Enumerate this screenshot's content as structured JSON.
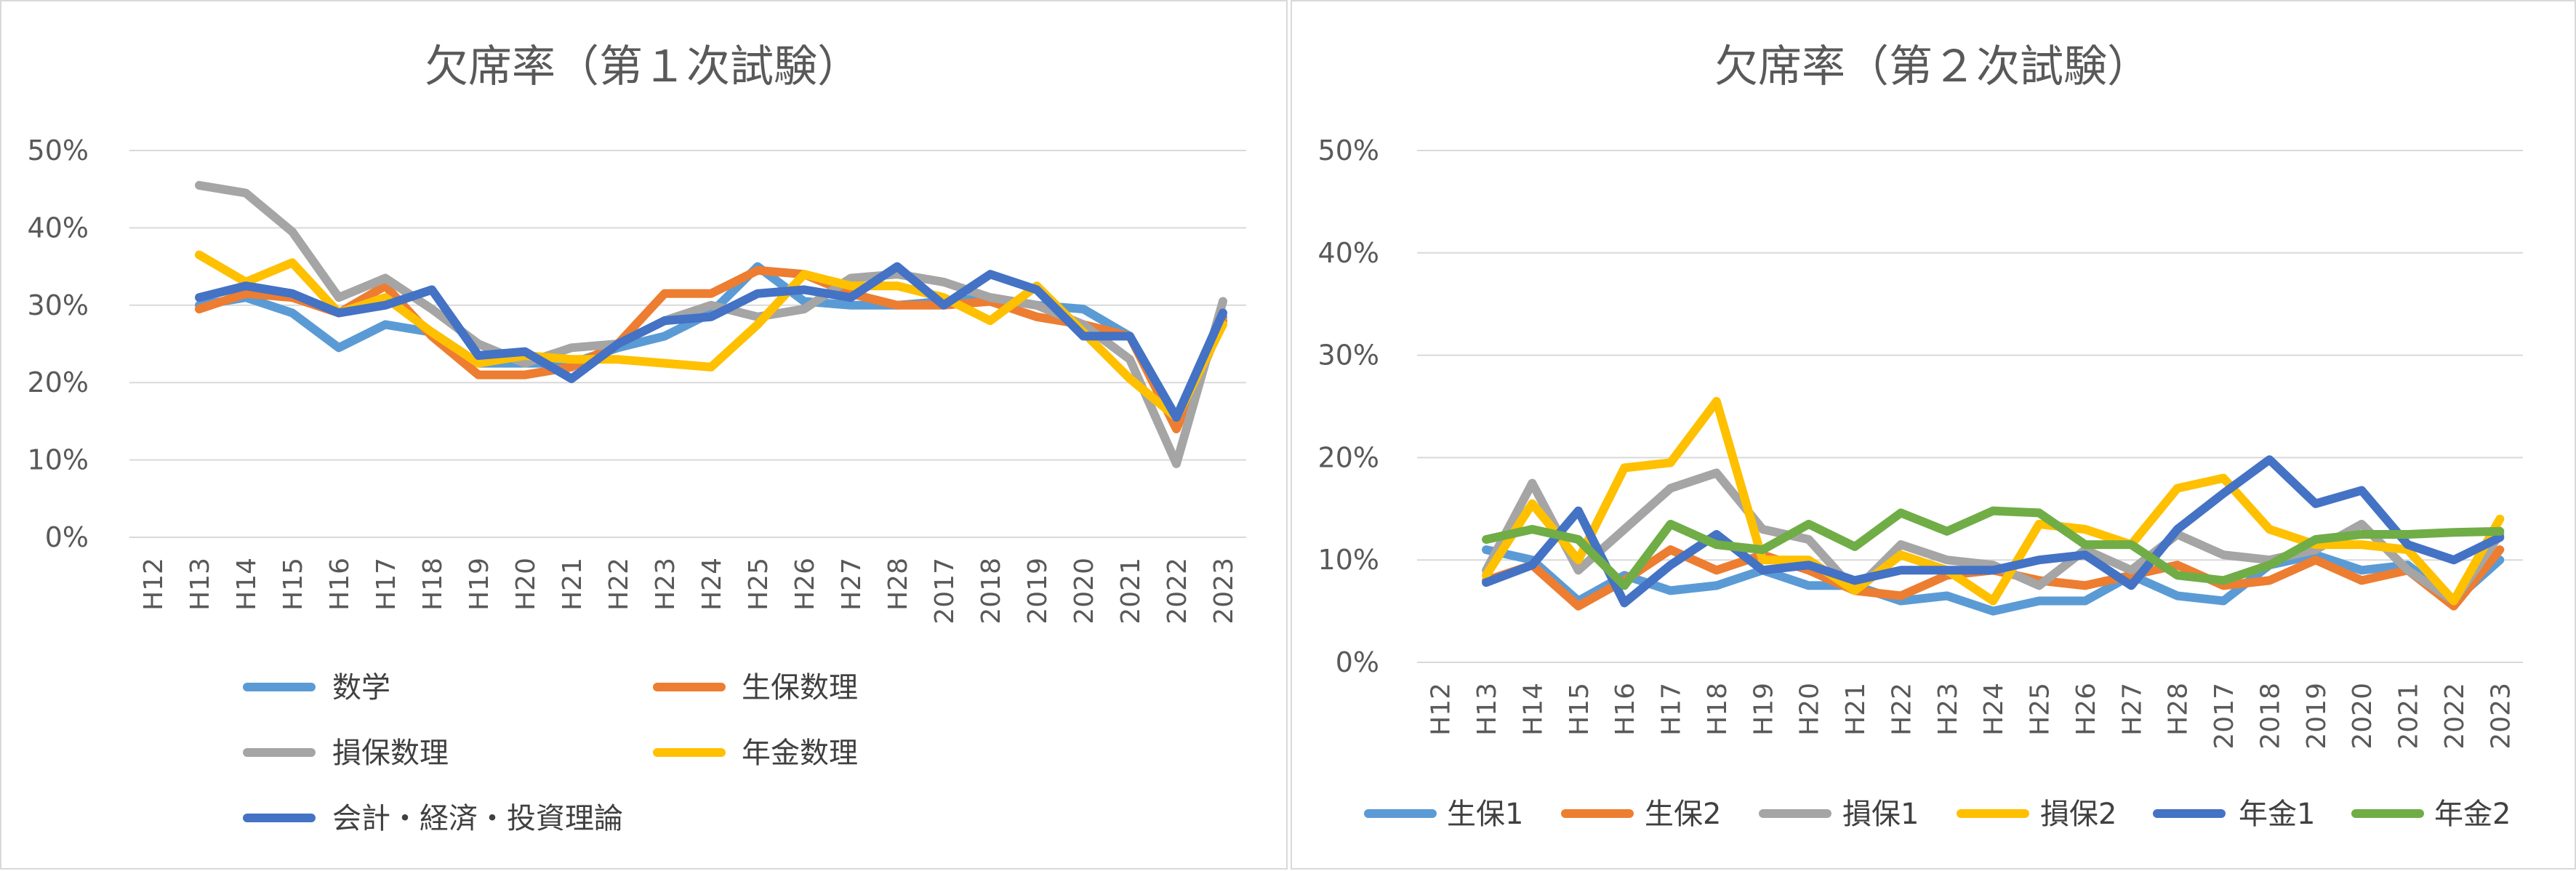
{
  "chart_data": [
    {
      "type": "line",
      "title": "欠席率（第１次試験）",
      "categories": [
        "H12",
        "H13",
        "H14",
        "H15",
        "H16",
        "H17",
        "H18",
        "H19",
        "H20",
        "H21",
        "H22",
        "H23",
        "H24",
        "H25",
        "H26",
        "H27",
        "H28",
        "2017",
        "2018",
        "2019",
        "2020",
        "2021",
        "2022",
        "2023"
      ],
      "ylim": [
        0,
        0.5
      ],
      "yticks": [
        0,
        0.1,
        0.2,
        0.3,
        0.4,
        0.5
      ],
      "ytick_labels": [
        "0%",
        "10%",
        "20%",
        "30%",
        "40%",
        "50%"
      ],
      "grid": true,
      "legend_position": "bottom",
      "series": [
        {
          "name": "数学",
          "color": "#5B9BD5",
          "values": [
            null,
            0.3,
            0.31,
            0.29,
            0.245,
            0.275,
            0.265,
            0.225,
            0.225,
            0.225,
            0.245,
            0.26,
            0.29,
            0.35,
            0.305,
            0.3,
            0.3,
            0.305,
            0.31,
            0.3,
            0.295,
            0.26,
            0.145,
            0.285
          ]
        },
        {
          "name": "生保数理",
          "color": "#ED7D31",
          "values": [
            null,
            0.295,
            0.315,
            0.31,
            0.29,
            0.325,
            0.26,
            0.21,
            0.21,
            0.22,
            0.25,
            0.315,
            0.315,
            0.345,
            0.34,
            0.315,
            0.3,
            0.3,
            0.305,
            0.285,
            0.275,
            0.26,
            0.14,
            0.28
          ]
        },
        {
          "name": "損保数理",
          "color": "#A5A5A5",
          "values": [
            null,
            0.455,
            0.445,
            0.395,
            0.31,
            0.335,
            0.295,
            0.25,
            0.225,
            0.245,
            0.25,
            0.28,
            0.3,
            0.285,
            0.295,
            0.335,
            0.34,
            0.33,
            0.31,
            0.3,
            0.275,
            0.23,
            0.095,
            0.305
          ]
        },
        {
          "name": "年金数理",
          "color": "#FFC000",
          "values": [
            null,
            0.365,
            0.33,
            0.355,
            0.29,
            0.31,
            0.265,
            0.225,
            0.235,
            0.23,
            0.23,
            0.225,
            0.22,
            0.275,
            0.34,
            0.325,
            0.325,
            0.31,
            0.28,
            0.325,
            0.265,
            0.205,
            0.155,
            0.275
          ]
        },
        {
          "name": "会計・経済・投資理論",
          "color": "#4472C4",
          "values": [
            null,
            0.31,
            0.325,
            0.315,
            0.29,
            0.3,
            0.32,
            0.235,
            0.24,
            0.205,
            0.25,
            0.28,
            0.285,
            0.315,
            0.32,
            0.31,
            0.35,
            0.3,
            0.34,
            0.32,
            0.26,
            0.26,
            0.155,
            0.29
          ]
        }
      ]
    },
    {
      "type": "line",
      "title": "欠席率（第２次試験）",
      "categories": [
        "H12",
        "H13",
        "H14",
        "H15",
        "H16",
        "H17",
        "H18",
        "H19",
        "H20",
        "H21",
        "H22",
        "H23",
        "H24",
        "H25",
        "H26",
        "H27",
        "H28",
        "2017",
        "2018",
        "2019",
        "2020",
        "2021",
        "2022",
        "2023"
      ],
      "ylim": [
        0,
        0.5
      ],
      "yticks": [
        0,
        0.1,
        0.2,
        0.3,
        0.4,
        0.5
      ],
      "ytick_labels": [
        "0%",
        "10%",
        "20%",
        "30%",
        "40%",
        "50%"
      ],
      "grid": true,
      "legend_position": "bottom",
      "series": [
        {
          "name": "生保1",
          "color": "#5B9BD5",
          "values": [
            null,
            0.11,
            0.1,
            0.06,
            0.085,
            0.07,
            0.075,
            0.09,
            0.075,
            0.075,
            0.06,
            0.065,
            0.05,
            0.06,
            0.06,
            0.085,
            0.065,
            0.06,
            0.095,
            0.105,
            0.09,
            0.095,
            0.06,
            0.1
          ]
        },
        {
          "name": "生保2",
          "color": "#ED7D31",
          "values": [
            null,
            0.08,
            0.095,
            0.055,
            0.08,
            0.11,
            0.09,
            0.105,
            0.09,
            0.07,
            0.065,
            0.085,
            0.09,
            0.08,
            0.075,
            0.085,
            0.095,
            0.075,
            0.08,
            0.1,
            0.08,
            0.09,
            0.055,
            0.11
          ]
        },
        {
          "name": "損保1",
          "color": "#A5A5A5",
          "values": [
            null,
            0.09,
            0.175,
            0.09,
            0.13,
            0.17,
            0.185,
            0.13,
            0.12,
            0.07,
            0.115,
            0.1,
            0.095,
            0.075,
            0.11,
            0.09,
            0.125,
            0.105,
            0.1,
            0.11,
            0.135,
            0.09,
            0.06,
            0.125
          ]
        },
        {
          "name": "損保2",
          "color": "#FFC000",
          "values": [
            null,
            0.085,
            0.155,
            0.1,
            0.19,
            0.195,
            0.255,
            0.1,
            0.1,
            0.07,
            0.105,
            0.09,
            0.06,
            0.135,
            0.13,
            0.115,
            0.17,
            0.18,
            0.13,
            0.115,
            0.115,
            0.11,
            0.06,
            0.14
          ]
        },
        {
          "name": "年金1",
          "color": "#4472C4",
          "values": [
            null,
            0.078,
            0.095,
            0.148,
            0.058,
            0.095,
            0.125,
            0.09,
            0.095,
            0.08,
            0.09,
            0.09,
            0.09,
            0.1,
            0.105,
            0.075,
            0.13,
            0.165,
            0.198,
            0.155,
            0.168,
            0.115,
            0.1,
            0.122
          ]
        },
        {
          "name": "年金2",
          "color": "#70AD47",
          "values": [
            null,
            0.12,
            0.13,
            0.12,
            0.075,
            0.135,
            0.115,
            0.11,
            0.135,
            0.113,
            0.146,
            0.128,
            0.148,
            0.146,
            0.115,
            0.115,
            0.085,
            0.08,
            0.095,
            0.12,
            0.125,
            0.125,
            0.127,
            0.128
          ]
        }
      ]
    }
  ]
}
